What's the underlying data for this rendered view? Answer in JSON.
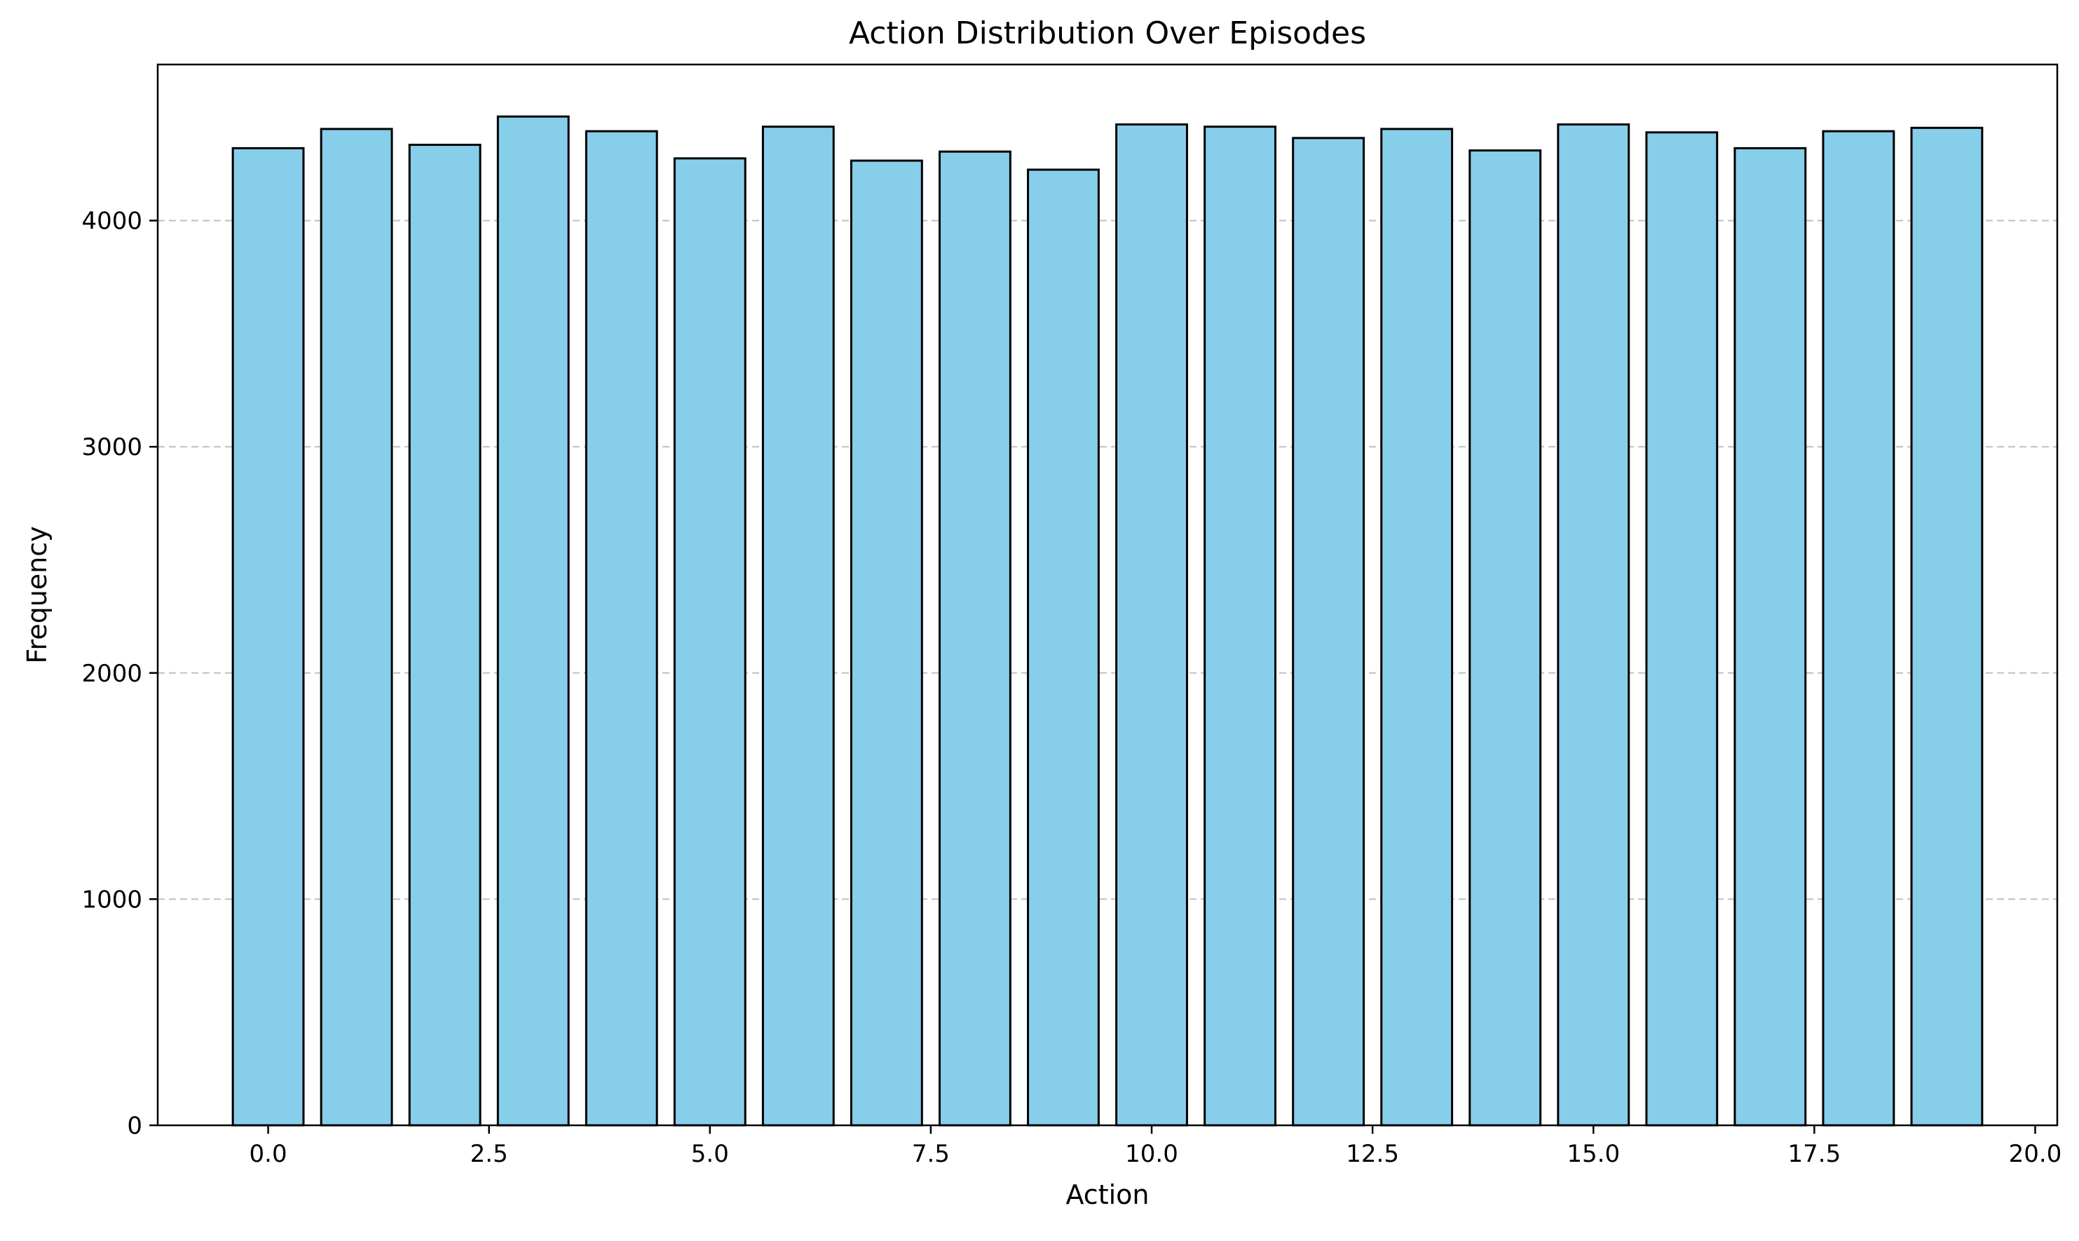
{
  "chart_data": {
    "type": "bar",
    "title": "Action Distribution Over Episodes",
    "xlabel": "Action",
    "ylabel": "Frequency",
    "x": [
      0,
      1,
      2,
      3,
      4,
      5,
      6,
      7,
      8,
      9,
      10,
      11,
      12,
      13,
      14,
      15,
      16,
      17,
      18,
      19
    ],
    "values": [
      4320,
      4405,
      4335,
      4460,
      4395,
      4275,
      4415,
      4265,
      4305,
      4225,
      4425,
      4415,
      4365,
      4405,
      4310,
      4425,
      4390,
      4320,
      4395,
      4410
    ],
    "bar_width": 0.8,
    "xlim": [
      -1.25,
      20.25
    ],
    "ylim": [
      0,
      4690
    ],
    "xticks": [
      0.0,
      2.5,
      5.0,
      7.5,
      10.0,
      12.5,
      15.0,
      17.5,
      20.0
    ],
    "xtick_labels": [
      "0.0",
      "2.5",
      "5.0",
      "7.5",
      "10.0",
      "12.5",
      "15.0",
      "17.5",
      "20.0"
    ],
    "yticks": [
      0,
      1000,
      2000,
      3000,
      4000
    ],
    "ytick_labels": [
      "0",
      "1000",
      "2000",
      "3000",
      "4000"
    ],
    "grid": "y, dashed",
    "bar_color": "#87CEEB",
    "edge_color": "#000000",
    "grid_color": "#c0c0c0"
  }
}
